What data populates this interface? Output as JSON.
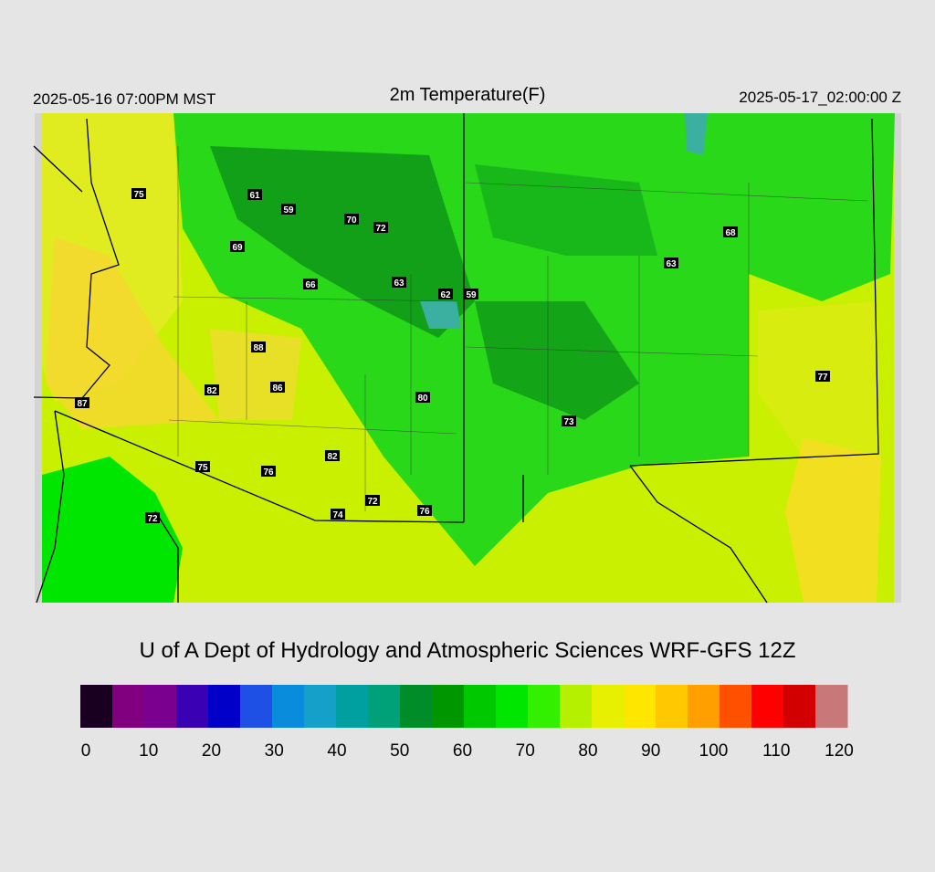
{
  "header": {
    "left": "2025-05-16 07:00PM MST",
    "title": "2m Temperature(F)",
    "right": "2025-05-17_02:00:00 Z"
  },
  "stations": [
    75,
    61,
    59,
    70,
    72,
    69,
    66,
    63,
    62,
    59,
    68,
    63,
    88,
    82,
    86,
    87,
    80,
    73,
    77,
    75,
    76,
    82,
    72,
    74,
    76,
    72
  ],
  "credit": "U of A Dept of Hydrology and Atmospheric Sciences WRF-GFS 12Z",
  "colorbar": {
    "range": [
      0,
      120
    ],
    "ticks": [
      0,
      10,
      20,
      30,
      40,
      50,
      60,
      70,
      80,
      90,
      100,
      110,
      120
    ],
    "colors": [
      "#1a0020",
      "#800080",
      "#7a0090",
      "#3a00b4",
      "#0000c8",
      "#1e50e6",
      "#0a8cdc",
      "#14a0c8",
      "#00a0a0",
      "#00a078",
      "#008c28",
      "#009600",
      "#00c800",
      "#00e600",
      "#32f000",
      "#b4f000",
      "#e6f000",
      "#ffe600",
      "#ffc800",
      "#ffa000",
      "#ff5000",
      "#ff0000",
      "#d20000",
      "#c87878"
    ]
  }
}
